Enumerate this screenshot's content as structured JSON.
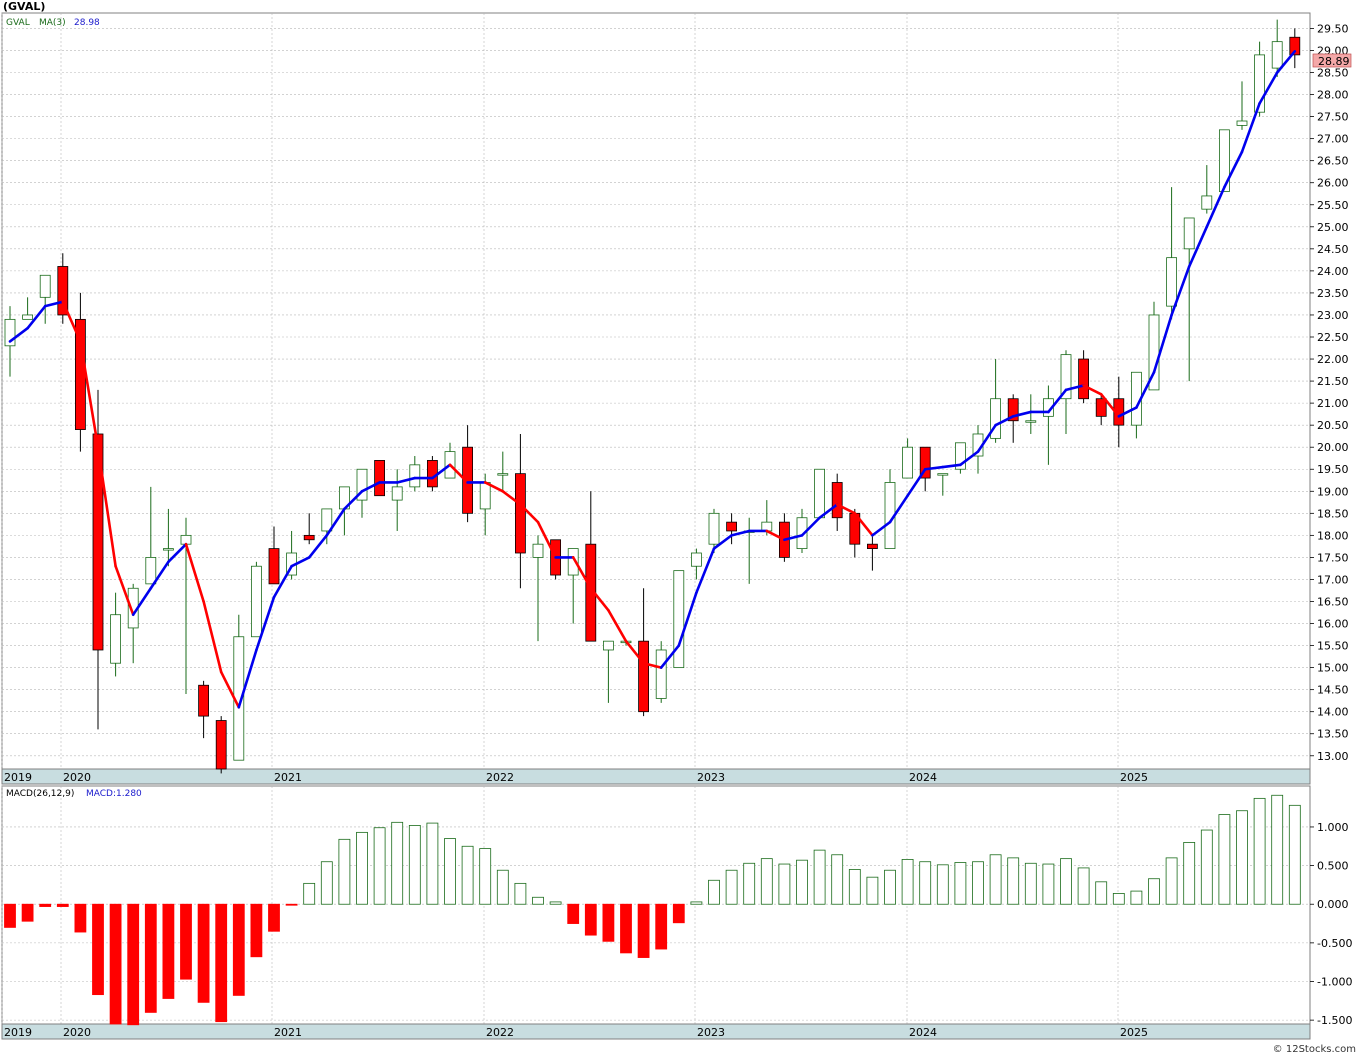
{
  "title": "(GVAL)",
  "footer": "© 12Stocks.com",
  "colors": {
    "up": "#1a6b1a",
    "down": "#ff0000",
    "ma_up": "#0000ee",
    "ma_down": "#ff0000",
    "grid": "#b8b8b8",
    "axisband": "#c8dde0",
    "price_marker": "#f4a8a8"
  },
  "chart_data": [
    {
      "type": "candlestick",
      "ticker_label": "GVAL",
      "indicator_label": "MA(3)",
      "indicator_value": "28.98",
      "last_price": "28.89",
      "ylim": [
        12.7,
        29.85
      ],
      "yticks": [
        "13.00",
        "13.50",
        "14.00",
        "14.50",
        "15.00",
        "15.50",
        "16.00",
        "16.50",
        "17.00",
        "17.50",
        "18.00",
        "18.50",
        "19.00",
        "19.50",
        "20.00",
        "20.50",
        "21.00",
        "21.50",
        "22.00",
        "22.50",
        "23.00",
        "23.50",
        "24.00",
        "24.50",
        "25.00",
        "25.50",
        "26.00",
        "26.50",
        "27.00",
        "27.50",
        "28.00",
        "28.50",
        "29.00",
        "29.50"
      ],
      "xlabels": [
        "2019",
        "2020",
        "2021",
        "2022",
        "2023",
        "2024",
        "2025"
      ],
      "candles": [
        {
          "o": 22.3,
          "h": 23.2,
          "l": 21.6,
          "c": 22.9
        },
        {
          "o": 22.9,
          "h": 23.4,
          "l": 22.9,
          "c": 23.0
        },
        {
          "o": 23.4,
          "h": 23.9,
          "l": 22.8,
          "c": 23.9
        },
        {
          "o": 24.1,
          "h": 24.4,
          "l": 22.8,
          "c": 23.0
        },
        {
          "o": 22.9,
          "h": 23.5,
          "l": 19.9,
          "c": 20.4
        },
        {
          "o": 20.3,
          "h": 21.3,
          "l": 13.6,
          "c": 15.4
        },
        {
          "o": 15.1,
          "h": 16.7,
          "l": 14.8,
          "c": 16.2
        },
        {
          "o": 15.9,
          "h": 16.9,
          "l": 15.1,
          "c": 16.8
        },
        {
          "o": 16.9,
          "h": 19.1,
          "l": 16.9,
          "c": 17.5
        },
        {
          "o": 17.7,
          "h": 18.6,
          "l": 17.3,
          "c": 17.7
        },
        {
          "o": 17.8,
          "h": 18.4,
          "l": 14.4,
          "c": 18.0
        },
        {
          "o": 14.6,
          "h": 14.7,
          "l": 13.4,
          "c": 13.9
        },
        {
          "o": 13.8,
          "h": 13.9,
          "l": 12.6,
          "c": 12.7
        },
        {
          "o": 12.9,
          "h": 16.2,
          "l": 12.9,
          "c": 15.7
        },
        {
          "o": 15.7,
          "h": 17.4,
          "l": 15.7,
          "c": 17.3
        },
        {
          "o": 17.7,
          "h": 18.2,
          "l": 16.9,
          "c": 16.9
        },
        {
          "o": 17.1,
          "h": 18.1,
          "l": 17.0,
          "c": 17.6
        },
        {
          "o": 18.0,
          "h": 18.5,
          "l": 17.8,
          "c": 17.9
        },
        {
          "o": 18.1,
          "h": 18.6,
          "l": 17.8,
          "c": 18.6
        },
        {
          "o": 18.6,
          "h": 19.0,
          "l": 18.0,
          "c": 19.1
        },
        {
          "o": 18.8,
          "h": 19.5,
          "l": 18.4,
          "c": 19.5
        },
        {
          "o": 19.7,
          "h": 19.7,
          "l": 18.9,
          "c": 18.9
        },
        {
          "o": 18.8,
          "h": 19.5,
          "l": 18.1,
          "c": 19.1
        },
        {
          "o": 19.1,
          "h": 19.8,
          "l": 19.0,
          "c": 19.6
        },
        {
          "o": 19.7,
          "h": 19.8,
          "l": 19.0,
          "c": 19.1
        },
        {
          "o": 19.3,
          "h": 20.1,
          "l": 19.3,
          "c": 19.9
        },
        {
          "o": 20.0,
          "h": 20.5,
          "l": 18.3,
          "c": 18.5
        },
        {
          "o": 18.6,
          "h": 19.4,
          "l": 18.0,
          "c": 19.2
        },
        {
          "o": 19.4,
          "h": 19.9,
          "l": 19.0,
          "c": 19.4
        },
        {
          "o": 19.4,
          "h": 20.3,
          "l": 16.8,
          "c": 17.6
        },
        {
          "o": 17.5,
          "h": 18.0,
          "l": 15.6,
          "c": 17.8
        },
        {
          "o": 17.9,
          "h": 17.9,
          "l": 17.0,
          "c": 17.1
        },
        {
          "o": 17.1,
          "h": 17.7,
          "l": 16.0,
          "c": 17.7
        },
        {
          "o": 17.8,
          "h": 19.0,
          "l": 15.6,
          "c": 15.6
        },
        {
          "o": 15.4,
          "h": 15.6,
          "l": 14.2,
          "c": 15.6
        },
        {
          "o": 15.6,
          "h": 15.6,
          "l": 15.5,
          "c": 15.6
        },
        {
          "o": 15.6,
          "h": 16.8,
          "l": 13.9,
          "c": 14.0
        },
        {
          "o": 14.3,
          "h": 15.6,
          "l": 14.2,
          "c": 15.4
        },
        {
          "o": 15.0,
          "h": 17.2,
          "l": 15.0,
          "c": 17.2
        },
        {
          "o": 17.3,
          "h": 17.7,
          "l": 17.0,
          "c": 17.6
        },
        {
          "o": 17.8,
          "h": 18.6,
          "l": 17.6,
          "c": 18.5
        },
        {
          "o": 18.3,
          "h": 18.5,
          "l": 17.8,
          "c": 18.1
        },
        {
          "o": 18.1,
          "h": 18.4,
          "l": 16.9,
          "c": 18.1
        },
        {
          "o": 18.1,
          "h": 18.8,
          "l": 18.0,
          "c": 18.3
        },
        {
          "o": 18.3,
          "h": 18.5,
          "l": 17.4,
          "c": 17.5
        },
        {
          "o": 17.7,
          "h": 18.6,
          "l": 17.6,
          "c": 18.4
        },
        {
          "o": 18.4,
          "h": 19.5,
          "l": 18.4,
          "c": 19.5
        },
        {
          "o": 19.2,
          "h": 19.4,
          "l": 18.1,
          "c": 18.4
        },
        {
          "o": 18.5,
          "h": 18.6,
          "l": 17.5,
          "c": 17.8
        },
        {
          "o": 17.8,
          "h": 18.0,
          "l": 17.2,
          "c": 17.7
        },
        {
          "o": 17.7,
          "h": 19.5,
          "l": 17.7,
          "c": 19.2
        },
        {
          "o": 19.3,
          "h": 20.2,
          "l": 19.3,
          "c": 20.0
        },
        {
          "o": 20.0,
          "h": 20.0,
          "l": 19.0,
          "c": 19.3
        },
        {
          "o": 19.4,
          "h": 19.4,
          "l": 18.9,
          "c": 19.4
        },
        {
          "o": 19.5,
          "h": 20.1,
          "l": 19.4,
          "c": 20.1
        },
        {
          "o": 19.8,
          "h": 20.5,
          "l": 19.4,
          "c": 20.3
        },
        {
          "o": 20.2,
          "h": 22.0,
          "l": 20.1,
          "c": 21.1
        },
        {
          "o": 21.1,
          "h": 21.2,
          "l": 20.1,
          "c": 20.6
        },
        {
          "o": 20.6,
          "h": 21.2,
          "l": 20.3,
          "c": 20.6
        },
        {
          "o": 20.7,
          "h": 21.4,
          "l": 19.6,
          "c": 21.1
        },
        {
          "o": 21.1,
          "h": 22.2,
          "l": 20.3,
          "c": 22.1
        },
        {
          "o": 22.0,
          "h": 22.2,
          "l": 21.0,
          "c": 21.1
        },
        {
          "o": 21.1,
          "h": 21.2,
          "l": 20.5,
          "c": 20.7
        },
        {
          "o": 21.1,
          "h": 21.6,
          "l": 20.0,
          "c": 20.5
        },
        {
          "o": 20.5,
          "h": 21.7,
          "l": 20.2,
          "c": 21.7
        },
        {
          "o": 21.3,
          "h": 23.3,
          "l": 21.3,
          "c": 23.0
        },
        {
          "o": 23.2,
          "h": 25.9,
          "l": 22.9,
          "c": 24.3
        },
        {
          "o": 24.5,
          "h": 25.2,
          "l": 21.5,
          "c": 25.2
        },
        {
          "o": 25.4,
          "h": 26.4,
          "l": 25.3,
          "c": 25.7
        },
        {
          "o": 25.8,
          "h": 27.2,
          "l": 25.8,
          "c": 27.2
        },
        {
          "o": 27.3,
          "h": 28.3,
          "l": 27.2,
          "c": 27.4
        },
        {
          "o": 27.6,
          "h": 29.2,
          "l": 27.5,
          "c": 28.9
        },
        {
          "o": 28.6,
          "h": 29.7,
          "l": 28.4,
          "c": 29.2
        },
        {
          "o": 29.3,
          "h": 29.5,
          "l": 28.6,
          "c": 28.9
        }
      ],
      "ma3": [
        22.4,
        22.7,
        23.2,
        23.3,
        22.4,
        20.0,
        17.3,
        16.2,
        16.8,
        17.4,
        17.8,
        16.5,
        14.9,
        14.1,
        15.4,
        16.6,
        17.3,
        17.5,
        18.0,
        18.6,
        19.0,
        19.2,
        19.2,
        19.3,
        19.3,
        19.6,
        19.2,
        19.2,
        19.0,
        18.7,
        18.3,
        17.5,
        17.5,
        16.8,
        16.3,
        15.6,
        15.1,
        15.0,
        15.5,
        16.7,
        17.7,
        18.0,
        18.1,
        18.1,
        17.9,
        18.0,
        18.4,
        18.7,
        18.5,
        18.0,
        18.3,
        18.9,
        19.5,
        19.55,
        19.6,
        19.9,
        20.5,
        20.7,
        20.8,
        20.8,
        21.3,
        21.4,
        21.2,
        20.7,
        20.9,
        21.7,
        23.0,
        24.1,
        25.0,
        25.9,
        26.7,
        27.8,
        28.5,
        28.98
      ],
      "markers": []
    },
    {
      "type": "bar",
      "indicator_label": "MACD(26,12,9)",
      "indicator_value": "MACD:1.280",
      "ylim": [
        -1.55,
        1.53
      ],
      "yticks": [
        "-1.500",
        "-1.000",
        "-0.500",
        "0.000",
        "0.500",
        "1.000"
      ],
      "xlabels": [
        "2019",
        "2020",
        "2021",
        "2022",
        "2023",
        "2024",
        "2025"
      ],
      "values": [
        -0.3,
        -0.22,
        -0.03,
        -0.03,
        -0.36,
        -1.17,
        -1.55,
        -1.56,
        -1.4,
        -1.22,
        -0.97,
        -1.27,
        -1.52,
        -1.18,
        -0.68,
        -0.35,
        -0.01,
        0.27,
        0.55,
        0.84,
        0.93,
        0.99,
        1.06,
        1.02,
        1.05,
        0.85,
        0.75,
        0.72,
        0.44,
        0.27,
        0.09,
        0.03,
        -0.25,
        -0.4,
        -0.48,
        -0.63,
        -0.69,
        -0.58,
        -0.24,
        0.03,
        0.31,
        0.44,
        0.53,
        0.59,
        0.52,
        0.57,
        0.7,
        0.64,
        0.45,
        0.35,
        0.44,
        0.58,
        0.55,
        0.51,
        0.54,
        0.55,
        0.64,
        0.6,
        0.53,
        0.52,
        0.59,
        0.47,
        0.29,
        0.14,
        0.17,
        0.33,
        0.6,
        0.8,
        0.96,
        1.16,
        1.21,
        1.37,
        1.41,
        1.28
      ]
    }
  ]
}
